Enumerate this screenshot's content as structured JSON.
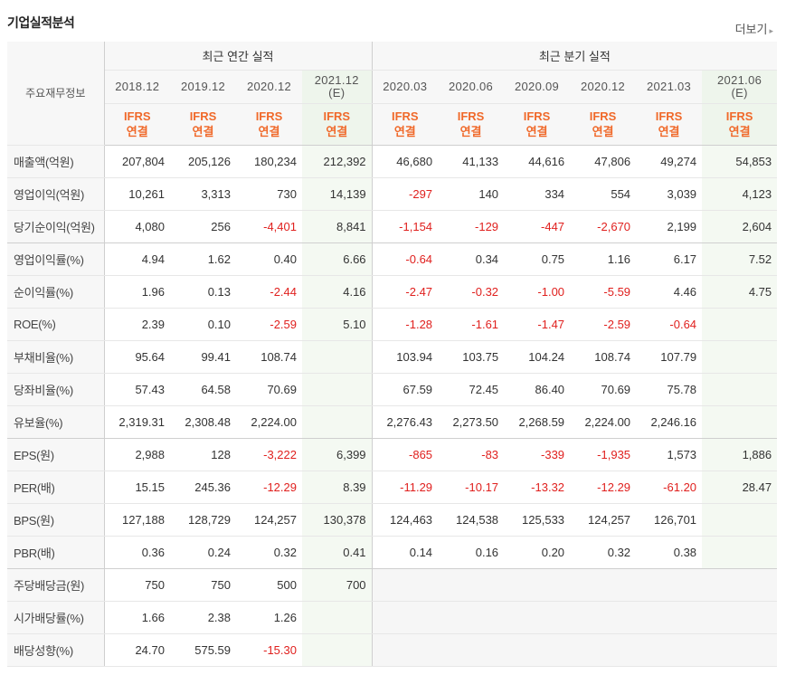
{
  "title": "기업실적분석",
  "more_label": "더보기",
  "header": {
    "label_col": "주요재무정보",
    "annual_label": "최근 연간 실적",
    "quarter_label": "최근 분기 실적",
    "periods": [
      {
        "line1": "2018.12",
        "line2": "",
        "ifrs": "IFRS",
        "basis": "연결"
      },
      {
        "line1": "2019.12",
        "line2": "",
        "ifrs": "IFRS",
        "basis": "연결"
      },
      {
        "line1": "2020.12",
        "line2": "",
        "ifrs": "IFRS",
        "basis": "연결"
      },
      {
        "line1": "2021.12",
        "line2": "(E)",
        "ifrs": "IFRS",
        "basis": "연결"
      },
      {
        "line1": "2020.03",
        "line2": "",
        "ifrs": "IFRS",
        "basis": "연결"
      },
      {
        "line1": "2020.06",
        "line2": "",
        "ifrs": "IFRS",
        "basis": "연결"
      },
      {
        "line1": "2020.09",
        "line2": "",
        "ifrs": "IFRS",
        "basis": "연결"
      },
      {
        "line1": "2020.12",
        "line2": "",
        "ifrs": "IFRS",
        "basis": "연결"
      },
      {
        "line1": "2021.03",
        "line2": "",
        "ifrs": "IFRS",
        "basis": "연결"
      },
      {
        "line1": "2021.06",
        "line2": "(E)",
        "ifrs": "IFRS",
        "basis": "연결"
      }
    ]
  },
  "rows": [
    {
      "label": "매출액(억원)",
      "values": [
        "207,804",
        "205,126",
        "180,234",
        "212,392",
        "46,680",
        "41,133",
        "44,616",
        "47,806",
        "49,274",
        "54,853"
      ]
    },
    {
      "label": "영업이익(억원)",
      "values": [
        "10,261",
        "3,313",
        "730",
        "14,139",
        "-297",
        "140",
        "334",
        "554",
        "3,039",
        "4,123"
      ]
    },
    {
      "label": "당기순이익(억원)",
      "values": [
        "4,080",
        "256",
        "-4,401",
        "8,841",
        "-1,154",
        "-129",
        "-447",
        "-2,670",
        "2,199",
        "2,604"
      ]
    },
    {
      "label": "영업이익률(%)",
      "values": [
        "4.94",
        "1.62",
        "0.40",
        "6.66",
        "-0.64",
        "0.34",
        "0.75",
        "1.16",
        "6.17",
        "7.52"
      ]
    },
    {
      "label": "순이익률(%)",
      "values": [
        "1.96",
        "0.13",
        "-2.44",
        "4.16",
        "-2.47",
        "-0.32",
        "-1.00",
        "-5.59",
        "4.46",
        "4.75"
      ]
    },
    {
      "label": "ROE(%)",
      "values": [
        "2.39",
        "0.10",
        "-2.59",
        "5.10",
        "-1.28",
        "-1.61",
        "-1.47",
        "-2.59",
        "-0.64",
        ""
      ]
    },
    {
      "label": "부채비율(%)",
      "values": [
        "95.64",
        "99.41",
        "108.74",
        "",
        "103.94",
        "103.75",
        "104.24",
        "108.74",
        "107.79",
        ""
      ]
    },
    {
      "label": "당좌비율(%)",
      "values": [
        "57.43",
        "64.58",
        "70.69",
        "",
        "67.59",
        "72.45",
        "86.40",
        "70.69",
        "75.78",
        ""
      ]
    },
    {
      "label": "유보율(%)",
      "values": [
        "2,319.31",
        "2,308.48",
        "2,224.00",
        "",
        "2,276.43",
        "2,273.50",
        "2,268.59",
        "2,224.00",
        "2,246.16",
        ""
      ]
    },
    {
      "label": "EPS(원)",
      "values": [
        "2,988",
        "128",
        "-3,222",
        "6,399",
        "-865",
        "-83",
        "-339",
        "-1,935",
        "1,573",
        "1,886"
      ]
    },
    {
      "label": "PER(배)",
      "values": [
        "15.15",
        "245.36",
        "-12.29",
        "8.39",
        "-11.29",
        "-10.17",
        "-13.32",
        "-12.29",
        "-61.20",
        "28.47"
      ]
    },
    {
      "label": "BPS(원)",
      "values": [
        "127,188",
        "128,729",
        "124,257",
        "130,378",
        "124,463",
        "124,538",
        "125,533",
        "124,257",
        "126,701",
        ""
      ]
    },
    {
      "label": "PBR(배)",
      "values": [
        "0.36",
        "0.24",
        "0.32",
        "0.41",
        "0.14",
        "0.16",
        "0.20",
        "0.32",
        "0.38",
        ""
      ]
    },
    {
      "label": "주당배당금(원)",
      "values": [
        "750",
        "750",
        "500",
        "700",
        "",
        "",
        "",
        "",
        "",
        ""
      ]
    },
    {
      "label": "시가배당률(%)",
      "values": [
        "1.66",
        "2.38",
        "1.26",
        "",
        "",
        "",
        "",
        "",
        "",
        ""
      ]
    },
    {
      "label": "배당성향(%)",
      "values": [
        "24.70",
        "575.59",
        "-15.30",
        "",
        "",
        "",
        "",
        "",
        "",
        ""
      ]
    }
  ]
}
